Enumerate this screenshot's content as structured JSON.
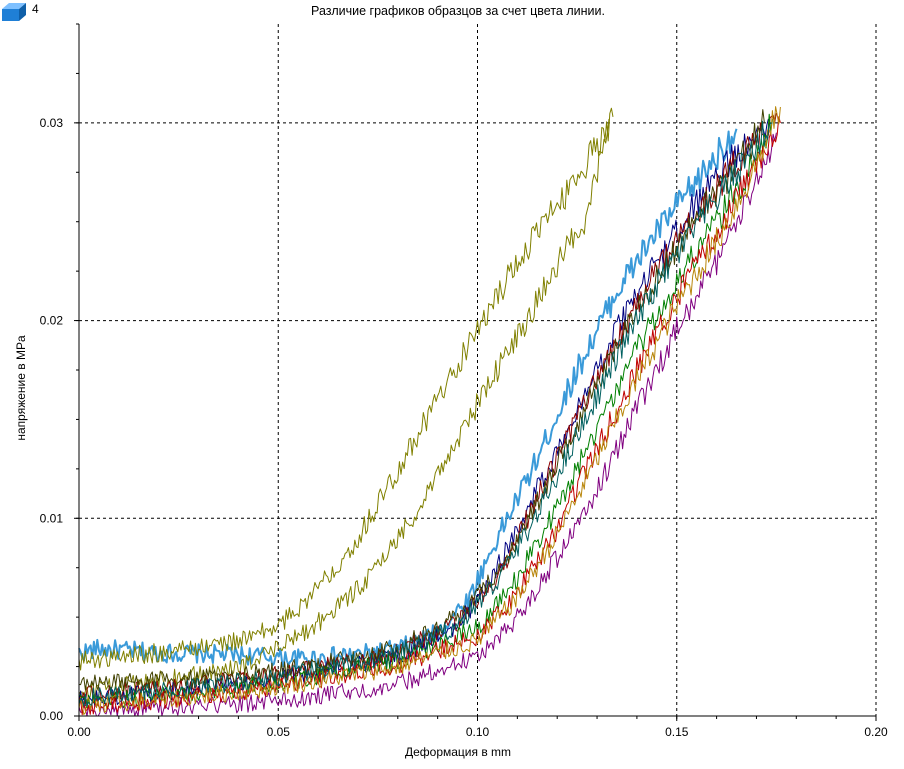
{
  "badge": {
    "count": "4",
    "icon": "blue-box-icon",
    "icon_color": "#1f7fd6"
  },
  "chart_data": {
    "type": "line",
    "title": "Различие графиков образцов за счет цвета линии.",
    "xlabel": "Деформация в mm",
    "ylabel": "напряжение в MPa",
    "xlim": [
      0,
      0.2
    ],
    "ylim": [
      0,
      0.035
    ],
    "x_ticks": [
      "0.00",
      "0.05",
      "0.10",
      "0.15",
      "0.20"
    ],
    "y_ticks": [
      "0.00",
      "0.01",
      "0.02",
      "0.03"
    ],
    "grid": true,
    "grid_style": "dashed",
    "legend": "none",
    "series": [
      {
        "color": "#3a9ad9",
        "width": 2,
        "points": [
          [
            0,
            0.0032
          ],
          [
            0.005,
            0.0034
          ],
          [
            0.02,
            0.0032
          ],
          [
            0.04,
            0.0031
          ],
          [
            0.055,
            0.0029
          ],
          [
            0.07,
            0.0031
          ],
          [
            0.08,
            0.0034
          ],
          [
            0.09,
            0.0042
          ],
          [
            0.098,
            0.006
          ],
          [
            0.105,
            0.009
          ],
          [
            0.115,
            0.013
          ],
          [
            0.125,
            0.0175
          ],
          [
            0.135,
            0.0215
          ],
          [
            0.145,
            0.0245
          ],
          [
            0.155,
            0.027
          ],
          [
            0.165,
            0.0297
          ]
        ]
      },
      {
        "color": "#808000",
        "width": 1,
        "points": [
          [
            0,
            0.0028
          ],
          [
            0.02,
            0.0032
          ],
          [
            0.04,
            0.0038
          ],
          [
            0.05,
            0.0045
          ],
          [
            0.06,
            0.0065
          ],
          [
            0.07,
            0.009
          ],
          [
            0.08,
            0.0125
          ],
          [
            0.09,
            0.016
          ],
          [
            0.1,
            0.0195
          ],
          [
            0.11,
            0.023
          ],
          [
            0.12,
            0.0258
          ],
          [
            0.128,
            0.0282
          ],
          [
            0.134,
            0.0303
          ]
        ]
      },
      {
        "color": "#808000",
        "width": 1,
        "points": [
          [
            0,
            0.0012
          ],
          [
            0.02,
            0.0018
          ],
          [
            0.04,
            0.0024
          ],
          [
            0.055,
            0.004
          ],
          [
            0.065,
            0.0055
          ],
          [
            0.075,
            0.0075
          ],
          [
            0.085,
            0.0105
          ],
          [
            0.095,
            0.014
          ],
          [
            0.105,
            0.0175
          ],
          [
            0.115,
            0.021
          ],
          [
            0.122,
            0.0235
          ],
          [
            0.128,
            0.0255
          ],
          [
            0.133,
            0.0302
          ]
        ]
      },
      {
        "color": "#000080",
        "width": 1,
        "points": [
          [
            0,
            0.0008
          ],
          [
            0.02,
            0.0012
          ],
          [
            0.04,
            0.0016
          ],
          [
            0.06,
            0.0022
          ],
          [
            0.08,
            0.003
          ],
          [
            0.095,
            0.0045
          ],
          [
            0.105,
            0.0075
          ],
          [
            0.115,
            0.0115
          ],
          [
            0.125,
            0.0155
          ],
          [
            0.135,
            0.0195
          ],
          [
            0.145,
            0.023
          ],
          [
            0.155,
            0.026
          ],
          [
            0.165,
            0.0285
          ],
          [
            0.173,
            0.0302
          ]
        ]
      },
      {
        "color": "#8b0000",
        "width": 1,
        "points": [
          [
            0,
            0.001
          ],
          [
            0.02,
            0.0014
          ],
          [
            0.04,
            0.0018
          ],
          [
            0.06,
            0.0024
          ],
          [
            0.08,
            0.0032
          ],
          [
            0.095,
            0.0048
          ],
          [
            0.105,
            0.007
          ],
          [
            0.115,
            0.011
          ],
          [
            0.125,
            0.015
          ],
          [
            0.135,
            0.019
          ],
          [
            0.145,
            0.0225
          ],
          [
            0.155,
            0.0255
          ],
          [
            0.165,
            0.028
          ],
          [
            0.175,
            0.0305
          ]
        ]
      },
      {
        "color": "#008000",
        "width": 1,
        "points": [
          [
            0,
            0.0006
          ],
          [
            0.02,
            0.001
          ],
          [
            0.04,
            0.0014
          ],
          [
            0.06,
            0.002
          ],
          [
            0.08,
            0.0028
          ],
          [
            0.1,
            0.0045
          ],
          [
            0.11,
            0.007
          ],
          [
            0.12,
            0.0105
          ],
          [
            0.13,
            0.0145
          ],
          [
            0.14,
            0.0185
          ],
          [
            0.15,
            0.022
          ],
          [
            0.16,
            0.025
          ],
          [
            0.168,
            0.0275
          ],
          [
            0.174,
            0.0302
          ]
        ]
      },
      {
        "color": "#800080",
        "width": 1,
        "points": [
          [
            0,
            0.0002
          ],
          [
            0.02,
            0.0004
          ],
          [
            0.04,
            0.0006
          ],
          [
            0.06,
            0.001
          ],
          [
            0.08,
            0.0016
          ],
          [
            0.1,
            0.003
          ],
          [
            0.11,
            0.005
          ],
          [
            0.12,
            0.008
          ],
          [
            0.13,
            0.0115
          ],
          [
            0.14,
            0.0155
          ],
          [
            0.15,
            0.0195
          ],
          [
            0.16,
            0.023
          ],
          [
            0.168,
            0.026
          ],
          [
            0.175,
            0.0295
          ]
        ]
      },
      {
        "color": "#c00000",
        "width": 1,
        "points": [
          [
            0,
            0.0004
          ],
          [
            0.02,
            0.0008
          ],
          [
            0.04,
            0.0012
          ],
          [
            0.06,
            0.0018
          ],
          [
            0.08,
            0.0026
          ],
          [
            0.1,
            0.004
          ],
          [
            0.11,
            0.0062
          ],
          [
            0.12,
            0.0095
          ],
          [
            0.13,
            0.0135
          ],
          [
            0.14,
            0.0175
          ],
          [
            0.15,
            0.0212
          ],
          [
            0.16,
            0.0245
          ],
          [
            0.168,
            0.0272
          ],
          [
            0.176,
            0.03
          ]
        ]
      },
      {
        "color": "#404000",
        "width": 1,
        "points": [
          [
            0,
            0.0016
          ],
          [
            0.02,
            0.0018
          ],
          [
            0.04,
            0.002
          ],
          [
            0.06,
            0.0026
          ],
          [
            0.08,
            0.0034
          ],
          [
            0.095,
            0.005
          ],
          [
            0.105,
            0.0072
          ],
          [
            0.115,
            0.0108
          ],
          [
            0.125,
            0.0148
          ],
          [
            0.135,
            0.0188
          ],
          [
            0.145,
            0.0222
          ],
          [
            0.155,
            0.0252
          ],
          [
            0.165,
            0.0278
          ],
          [
            0.172,
            0.03
          ]
        ]
      },
      {
        "color": "#b8860b",
        "width": 1,
        "points": [
          [
            0,
            0.0005
          ],
          [
            0.02,
            0.0008
          ],
          [
            0.04,
            0.0012
          ],
          [
            0.06,
            0.0018
          ],
          [
            0.08,
            0.0025
          ],
          [
            0.1,
            0.0038
          ],
          [
            0.11,
            0.006
          ],
          [
            0.12,
            0.0092
          ],
          [
            0.13,
            0.013
          ],
          [
            0.14,
            0.017
          ],
          [
            0.15,
            0.0208
          ],
          [
            0.16,
            0.024
          ],
          [
            0.168,
            0.027
          ],
          [
            0.176,
            0.0308
          ]
        ]
      },
      {
        "color": "#006060",
        "width": 1,
        "points": [
          [
            0,
            0.0009
          ],
          [
            0.02,
            0.0013
          ],
          [
            0.04,
            0.0017
          ],
          [
            0.06,
            0.0023
          ],
          [
            0.08,
            0.0031
          ],
          [
            0.095,
            0.0046
          ],
          [
            0.105,
            0.0068
          ],
          [
            0.115,
            0.0102
          ],
          [
            0.125,
            0.0142
          ],
          [
            0.135,
            0.0182
          ],
          [
            0.145,
            0.0218
          ],
          [
            0.155,
            0.0248
          ],
          [
            0.165,
            0.0275
          ],
          [
            0.174,
            0.03
          ]
        ]
      }
    ]
  }
}
